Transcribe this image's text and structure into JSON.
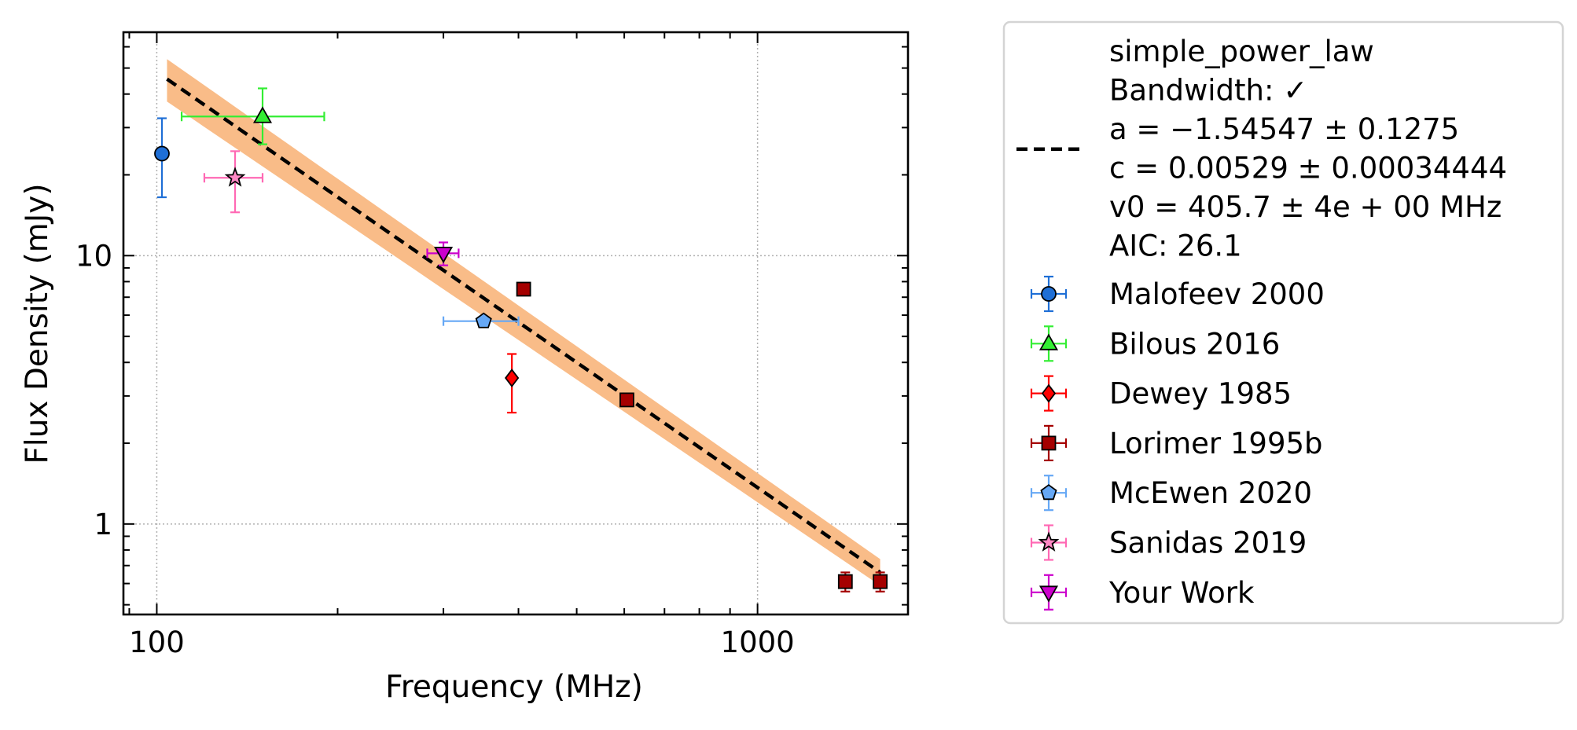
{
  "chart_data": {
    "type": "scatter",
    "xlabel": "Frequency (MHz)",
    "ylabel": "Flux Density (mJy)",
    "xscale": "log",
    "yscale": "log",
    "xlim": [
      88,
      1780
    ],
    "ylim": [
      0.46,
      68
    ],
    "xticks": [
      {
        "value": 100,
        "label": "100"
      },
      {
        "value": 1000,
        "label": "1000"
      }
    ],
    "yticks": [
      {
        "value": 1,
        "label": "1"
      },
      {
        "value": 10,
        "label": "10"
      }
    ],
    "grid": true,
    "legend_position": "outside right",
    "fit": {
      "label_lines": [
        "simple_power_law",
        "Bandwidth: ✓",
        "a = −1.54547 ± 0.1275",
        "c = 0.00529 ± 0.00034444",
        "v0 = 405.7 ± 4e + 00 MHz",
        "AIC: 26.1"
      ],
      "line_color": "#000000",
      "band_color": "#f9bc88",
      "x_range": [
        104,
        1600
      ],
      "y_line": [
        45.5,
        0.66
      ],
      "y_band_upper": [
        54.0,
        0.74
      ],
      "y_band_lower": [
        37.5,
        0.59
      ]
    },
    "series": [
      {
        "name": "Malofeev 2000",
        "marker": "circle",
        "color": "#1f6fd6",
        "ecolor": "#1f6fd6",
        "points": [
          {
            "x": 102,
            "y": 24,
            "yerr": [
              7.5,
              8.5
            ]
          }
        ]
      },
      {
        "name": "Bilous 2016",
        "marker": "triangle-up",
        "color": "#33ee33",
        "ecolor": "#33ee33",
        "points": [
          {
            "x": 150,
            "y": 33,
            "xerr": [
              40,
              40
            ],
            "yerr": [
              7,
              9
            ]
          }
        ]
      },
      {
        "name": "Dewey 1985",
        "marker": "diamond",
        "color": "#ff0000",
        "ecolor": "#ff0000",
        "points": [
          {
            "x": 390,
            "y": 3.5,
            "yerr": [
              0.9,
              0.8
            ]
          }
        ]
      },
      {
        "name": "Lorimer 1995b",
        "marker": "square",
        "color": "#a50000",
        "ecolor": "#a50000",
        "points": [
          {
            "x": 408,
            "y": 7.5,
            "yerr": [
              0.3,
              0.3
            ]
          },
          {
            "x": 606,
            "y": 2.9,
            "yerr": [
              0.15,
              0.15
            ]
          },
          {
            "x": 1400,
            "y": 0.61,
            "yerr": [
              0.05,
              0.05
            ]
          },
          {
            "x": 1600,
            "y": 0.61,
            "yerr": [
              0.05,
              0.05
            ]
          }
        ]
      },
      {
        "name": "McEwen 2020",
        "marker": "pentagon",
        "color": "#66a8f5",
        "ecolor": "#66a8f5",
        "points": [
          {
            "x": 350,
            "y": 5.7,
            "xerr": [
              50,
              50
            ],
            "yerr": [
              0.2,
              0.2
            ]
          }
        ]
      },
      {
        "name": "Sanidas 2019",
        "marker": "star",
        "color": "#ff88c4",
        "ecolor": "#ff69b4",
        "points": [
          {
            "x": 135,
            "y": 19.5,
            "xerr": [
              15,
              15
            ],
            "yerr": [
              5,
              5
            ]
          }
        ]
      },
      {
        "name": "Your Work",
        "marker": "triangle-down",
        "color": "#cc00cc",
        "ecolor": "#cc00cc",
        "points": [
          {
            "x": 300,
            "y": 10.2,
            "xerr": [
              18,
              18
            ],
            "yerr": [
              1,
              1
            ]
          }
        ]
      }
    ]
  }
}
